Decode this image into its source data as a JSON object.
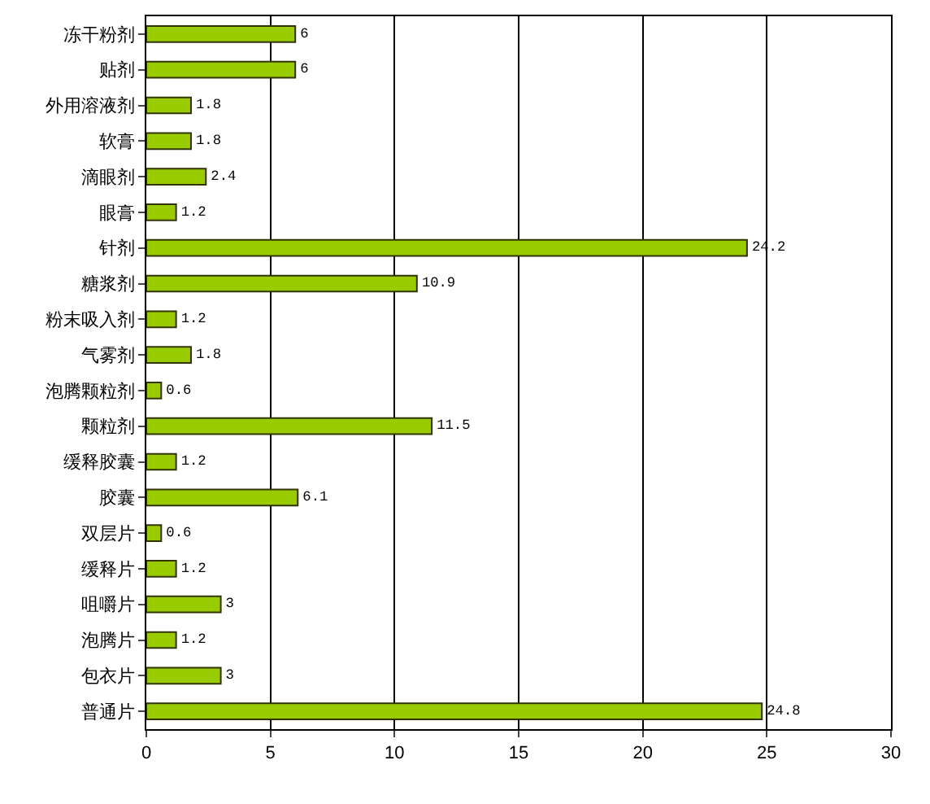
{
  "chart_data": {
    "type": "bar",
    "orientation": "horizontal",
    "categories": [
      "冻干粉剂",
      "贴剂",
      "外用溶液剂",
      "软膏",
      "滴眼剂",
      "眼膏",
      "针剂",
      "糖浆剂",
      "粉末吸入剂",
      "气雾剂",
      "泡腾颗粒剂",
      "颗粒剂",
      "缓释胶囊",
      "胶囊",
      "双层片",
      "缓释片",
      "咀嚼片",
      "泡腾片",
      "包衣片",
      "普通片"
    ],
    "values": [
      6,
      6,
      1.8,
      1.8,
      2.4,
      1.2,
      24.2,
      10.9,
      1.2,
      1.8,
      0.6,
      11.5,
      1.2,
      6.1,
      0.6,
      1.2,
      3,
      1.2,
      3,
      24.8
    ],
    "color": "#99cc00",
    "xlim": [
      0,
      30
    ],
    "xticks": [
      0,
      5,
      10,
      15,
      20,
      25,
      30
    ],
    "grid": "x",
    "data_labels": true
  }
}
